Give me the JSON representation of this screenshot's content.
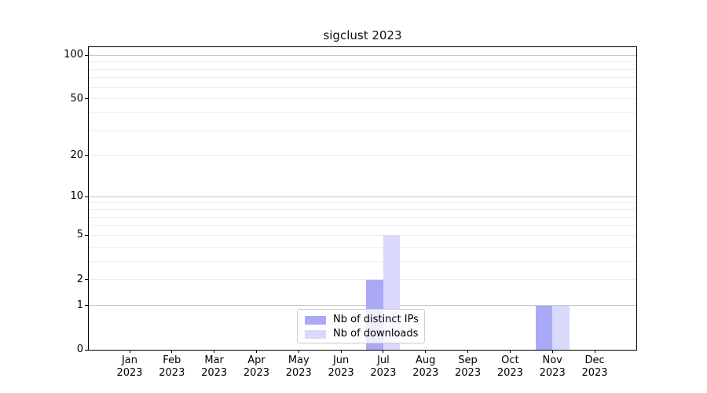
{
  "chart_data": {
    "type": "bar",
    "title": "sigclust 2023",
    "x_tick_months": [
      "Jan",
      "Feb",
      "Mar",
      "Apr",
      "May",
      "Jun",
      "Jul",
      "Aug",
      "Sep",
      "Oct",
      "Nov",
      "Dec"
    ],
    "x_tick_year": "2023",
    "categories": [
      "Jan 2023",
      "Feb 2023",
      "Mar 2023",
      "Apr 2023",
      "May 2023",
      "Jun 2023",
      "Jul 2023",
      "Aug 2023",
      "Sep 2023",
      "Oct 2023",
      "Nov 2023",
      "Dec 2023"
    ],
    "series": [
      {
        "name": "Nb of distinct IPs",
        "color": "#a9a9f6",
        "values": [
          0,
          0,
          0,
          0,
          0,
          0,
          2,
          0,
          0,
          0,
          1,
          0
        ]
      },
      {
        "name": "Nb of downloads",
        "color": "#d9d9fb",
        "values": [
          0,
          0,
          0,
          0,
          0,
          0,
          5,
          0,
          0,
          0,
          1,
          0
        ]
      }
    ],
    "yscale": "log1p",
    "ylim": [
      0,
      113.5
    ],
    "yticks": [
      0,
      1,
      2,
      5,
      10,
      20,
      50,
      100
    ],
    "major_gridlines": [
      1,
      10,
      100
    ],
    "minor_gridlines": [
      2,
      3,
      4,
      5,
      6,
      7,
      8,
      9,
      20,
      30,
      40,
      50,
      60,
      70,
      80,
      90
    ],
    "grid": "horizontal",
    "legend_position": "lower center",
    "colors": {
      "major_grid": "#c6c6c6",
      "minor_grid": "#ededed",
      "spine": "#000000",
      "bar_distinct_ips": "#a9a9f6",
      "bar_downloads": "#d9d9fb"
    }
  }
}
